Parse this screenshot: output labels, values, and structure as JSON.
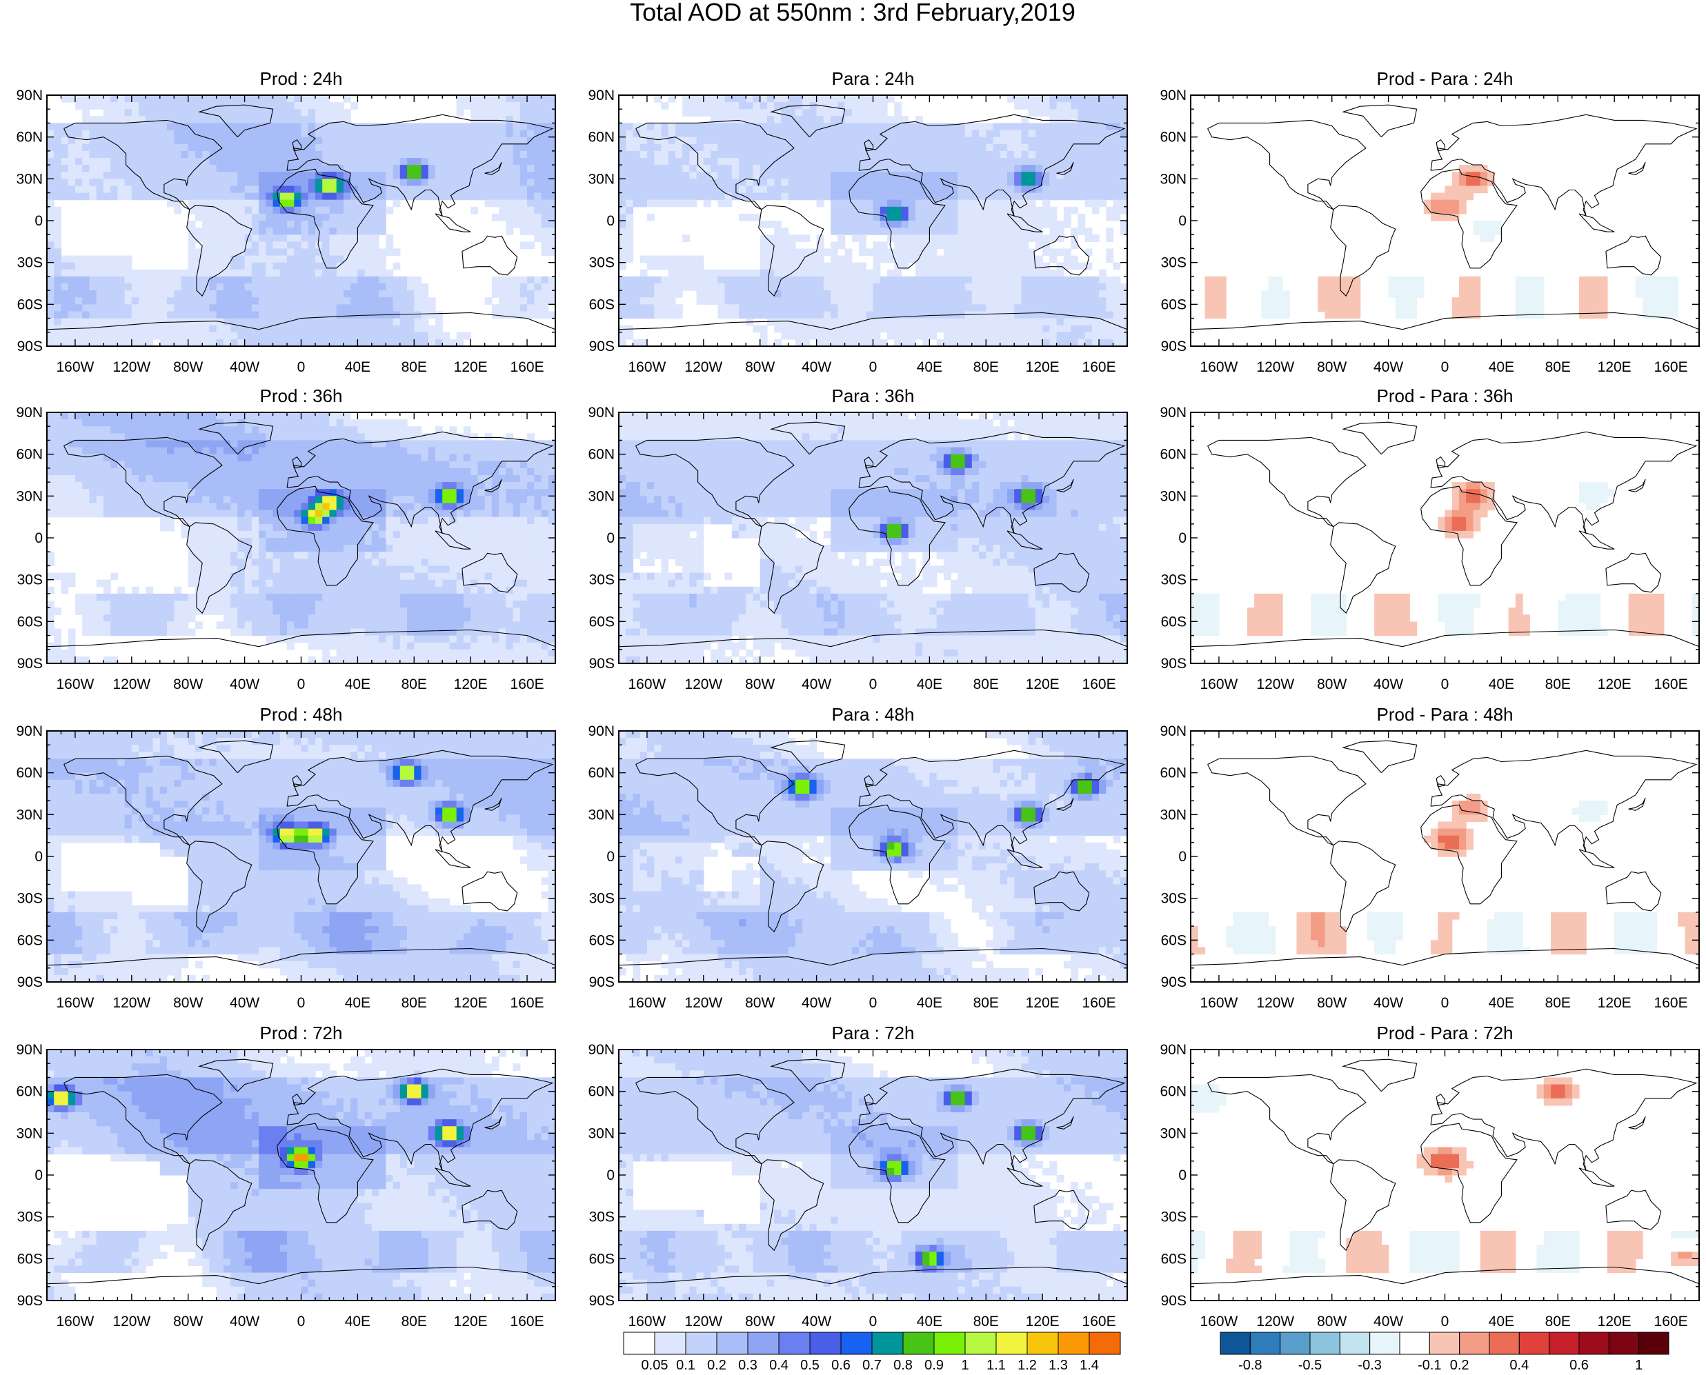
{
  "figure": {
    "title": "Total AOD at 550nm : 3rd February,2019"
  },
  "axes": {
    "lat_labels": [
      "90N",
      "60N",
      "30N",
      "0",
      "30S",
      "60S",
      "90S"
    ],
    "lon_labels": [
      "160W",
      "120W",
      "80W",
      "40W",
      "0",
      "40E",
      "80E",
      "120E",
      "160E"
    ]
  },
  "panels": [
    {
      "title": "Prod : 24h",
      "kind": "aod",
      "seed": 11,
      "intensity": 1.0,
      "hotspots": [
        [
          20,
          25
        ],
        [
          -10,
          15
        ],
        [
          80,
          35
        ]
      ]
    },
    {
      "title": "Para : 24h",
      "kind": "aod",
      "seed": 12,
      "intensity": 0.85,
      "hotspots": [
        [
          110,
          30
        ],
        [
          15,
          5
        ]
      ]
    },
    {
      "title": "Prod - Para : 24h",
      "kind": "diff",
      "seed": 13,
      "intensity": 0.9,
      "hotspots": [
        [
          20,
          30
        ],
        [
          0,
          10
        ],
        [
          30,
          -5
        ]
      ]
    },
    {
      "title": "Prod : 36h",
      "kind": "aod",
      "seed": 21,
      "intensity": 1.05,
      "hotspots": [
        [
          10,
          15
        ],
        [
          105,
          30
        ],
        [
          20,
          25
        ]
      ]
    },
    {
      "title": "Para : 36h",
      "kind": "aod",
      "seed": 22,
      "intensity": 0.9,
      "hotspots": [
        [
          110,
          30
        ],
        [
          60,
          55
        ],
        [
          15,
          5
        ]
      ]
    },
    {
      "title": "Prod - Para : 36h",
      "kind": "diff",
      "seed": 23,
      "intensity": 1.0,
      "hotspots": [
        [
          20,
          30
        ],
        [
          10,
          10
        ],
        [
          105,
          30
        ]
      ]
    },
    {
      "title": "Prod : 48h",
      "kind": "aod",
      "seed": 31,
      "intensity": 1.15,
      "hotspots": [
        [
          -10,
          15
        ],
        [
          10,
          15
        ],
        [
          75,
          60
        ],
        [
          105,
          30
        ]
      ]
    },
    {
      "title": "Para : 48h",
      "kind": "aod",
      "seed": 32,
      "intensity": 1.0,
      "hotspots": [
        [
          -50,
          50
        ],
        [
          110,
          30
        ],
        [
          150,
          50
        ],
        [
          15,
          5
        ]
      ]
    },
    {
      "title": "Prod - Para : 48h",
      "kind": "diff",
      "seed": 33,
      "intensity": 1.05,
      "hotspots": [
        [
          20,
          35
        ],
        [
          5,
          12
        ],
        [
          105,
          35
        ]
      ]
    },
    {
      "title": "Prod : 72h",
      "kind": "aod",
      "seed": 41,
      "intensity": 1.3,
      "hotspots": [
        [
          0,
          12
        ],
        [
          80,
          60
        ],
        [
          105,
          30
        ],
        [
          -170,
          55
        ]
      ]
    },
    {
      "title": "Para : 72h",
      "kind": "aod",
      "seed": 42,
      "intensity": 1.0,
      "hotspots": [
        [
          60,
          55
        ],
        [
          110,
          30
        ],
        [
          40,
          -60
        ],
        [
          15,
          5
        ]
      ]
    },
    {
      "title": "Prod - Para : 72h",
      "kind": "diff",
      "seed": 43,
      "intensity": 1.15,
      "hotspots": [
        [
          0,
          10
        ],
        [
          80,
          60
        ],
        [
          -170,
          55
        ],
        [
          170,
          -60
        ]
      ]
    }
  ],
  "colorbars": {
    "aod": {
      "labels": [
        "0.05",
        "0.1",
        "0.2",
        "0.3",
        "0.4",
        "0.5",
        "0.6",
        "0.7",
        "0.8",
        "0.9",
        "1",
        "1.1",
        "1.2",
        "1.3",
        "1.4"
      ],
      "colors": [
        "#ffffff",
        "#dde6fc",
        "#c3d2fb",
        "#a9bdf8",
        "#8ea5f4",
        "#6c7ff0",
        "#4a5ee8",
        "#1763ef",
        "#01969b",
        "#48c416",
        "#7af006",
        "#b6f83f",
        "#f1f43d",
        "#f7c60a",
        "#fb9a04",
        "#f56b07"
      ]
    },
    "diff": {
      "labels": [
        "-0.8",
        "-0.5",
        "-0.3",
        "-0.1",
        "0.2",
        "0.4",
        "0.6",
        "1"
      ],
      "colors": [
        "#0e5698",
        "#2e7cba",
        "#5a9fcc",
        "#8cc3dd",
        "#c2e4ef",
        "#e7f5fa",
        "#ffffff",
        "#f8c4b4",
        "#f39d86",
        "#eb6d56",
        "#e0423b",
        "#c6202a",
        "#9d0c1c",
        "#7b0512",
        "#5a000b"
      ]
    }
  }
}
